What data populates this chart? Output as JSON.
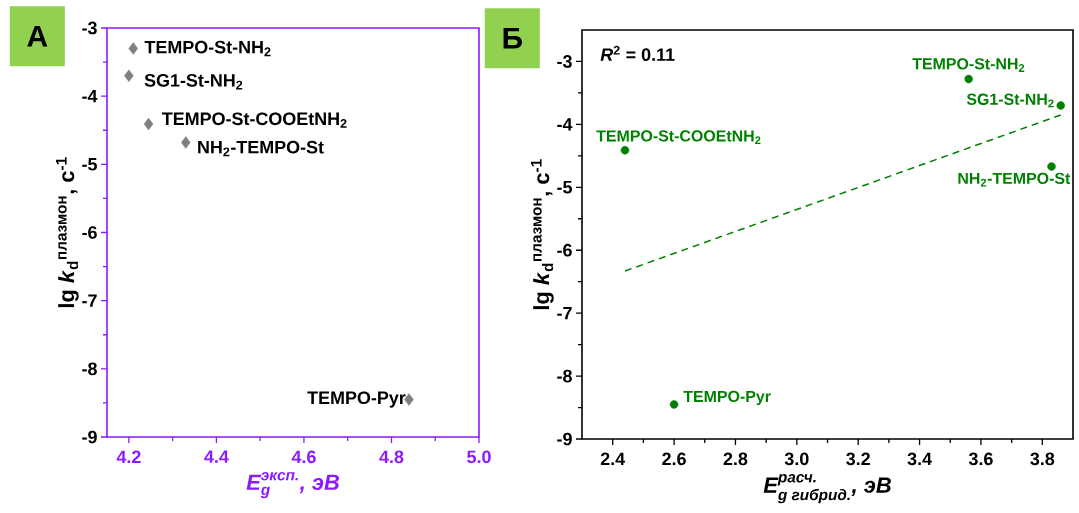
{
  "chart_data": [
    {
      "type": "scatter",
      "xlabel": "\\textit{E}_{\\textit{g}}^{\\textit{эксп.}}\\textit{, эВ}",
      "ylabel": "lg *k*$_{d}$$^{плазмон}$, с$^{-1}$",
      "series": [
        {
          "color": "#808080",
          "marker": "diamond",
          "x": [
            4.21,
            4.2,
            4.245,
            4.33,
            4.84
          ],
          "values": [
            -3.3,
            -3.7,
            -4.41,
            -4.68,
            -8.45
          ]
        }
      ],
      "xlim": [
        4.15,
        5.0
      ],
      "ylim": [
        -9,
        -3
      ],
      "xticks": [
        4.2,
        4.4,
        4.6,
        4.8,
        {
          "value": 5.0,
          "label": "5.0"
        }
      ],
      "yticks": [
        -9,
        -8,
        -7,
        -6,
        -5,
        -4,
        -3
      ],
      "annotations": [
        "А",
        {
          "text": "TEMPO-St-NH$_{2}$",
          "x": 4.21,
          "y": -3.3
        },
        {
          "text": "SG1-St-NH$_{2}$",
          "x": 4.2,
          "y": -3.7
        },
        {
          "text": "TEMPO-St-COOEtNH$_{2}$",
          "x": 4.245,
          "y": -4.41
        },
        {
          "text": "NH$_{2}$-TEMPO-St",
          "x": 4.33,
          "y": -4.68
        },
        {
          "text": "TEMPO-Pyr",
          "x": 4.84,
          "y": -8.45
        }
      ]
    },
    {
      "type": "scatter",
      "xlabel": "\\textit{E}_{\\textit{g гибрид.}}^{\\textit{расч.}}\\textit{, эВ}",
      "ylabel": "lg *k*$_{d}$$^{плазмон}$, с$^{-1}$",
      "series": [
        {
          "color": "#008000",
          "marker": "circle",
          "x": [
            3.56,
            3.86,
            2.44,
            3.83,
            2.6
          ],
          "values": [
            -3.28,
            -3.7,
            -4.41,
            -4.67,
            -8.45
          ]
        },
        {
          "type": "line",
          "color": "#008000",
          "marker": "none",
          "line_style": "dashed",
          "x": [
            2.44,
            3.86
          ],
          "values": [
            -6.33,
            -3.85
          ]
        }
      ],
      "xlim": [
        2.3,
        3.9
      ],
      "ylim": [
        -9,
        -2.5
      ],
      "xticks": [
        2.4,
        2.6,
        2.8,
        {
          "value": 3.0,
          "label": "3.0"
        },
        3.2,
        3.4,
        3.6,
        3.8
      ],
      "yticks": [
        -9,
        -8,
        -7,
        -6,
        -5,
        -4,
        -3
      ],
      "annotations": [
        "Б",
        "*R*$^{2}$ = 0.11",
        {
          "text": "TEMPO-St-NH$_{2}$",
          "x": 3.56,
          "y": -3.28
        },
        {
          "text": "SG1-St-NH$_{2}$",
          "x": 3.86,
          "y": -3.7
        },
        {
          "text": "TEMPO-St-COOEtNH$_{2}$",
          "x": 2.44,
          "y": -4.41
        },
        {
          "text": "NH$_{2}$-TEMPO-St",
          "x": 3.83,
          "y": -4.67
        },
        {
          "text": "TEMPO-Pyr",
          "x": 2.6,
          "y": -8.45
        }
      ]
    }
  ]
}
